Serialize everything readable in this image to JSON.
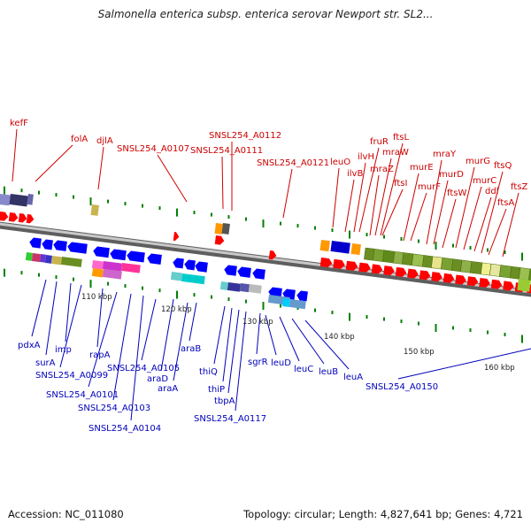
{
  "title": "Salmonella enterica subsp. enterica serovar Newport str. SL2...",
  "footer": {
    "accession": "Accession: NC_011080",
    "summary": "Topology: circular; Length: 4,827,641 bp; Genes: 4,721"
  },
  "colors": {
    "upper_label": "#cc0000",
    "lower_label": "#0000bb",
    "forward_gene": "#ff0000",
    "reverse_gene": "#0000ff",
    "tick": "#008000",
    "backbone": "#888888"
  },
  "scale_labels": [
    "110 kbp",
    "120 kbp",
    "130 kbp",
    "140 kbp",
    "150 kbp",
    "160 kbp"
  ],
  "upper_labels": [
    "kefF",
    "folA",
    "djlA",
    "SNSL254_A0107",
    "SNSL254_A0112",
    "SNSL254_A0111",
    "SNSL254_A0121",
    "leuO",
    "ilvB",
    "fruR",
    "ilvH",
    "ftsL",
    "mraW",
    "mraZ",
    "ftsI",
    "murE",
    "murF",
    "mraY",
    "murD",
    "ftsW",
    "murG",
    "murC",
    "ddl",
    "ftsQ",
    "ftsA",
    "ftsZ"
  ],
  "lower_labels": [
    "pdxA",
    "surA",
    "imp",
    "SNSL254_A0099",
    "rapA",
    "SNSL254_A0101",
    "SNSL254_A0103",
    "SNSL254_A0104",
    "SNSL254_A0105",
    "araD",
    "araA",
    "araB",
    "thiQ",
    "thiP",
    "tbpA",
    "SNSL254_A0117",
    "sgrR",
    "leuD",
    "leuC",
    "leuB",
    "leuA",
    "SNSL254_A0150"
  ]
}
